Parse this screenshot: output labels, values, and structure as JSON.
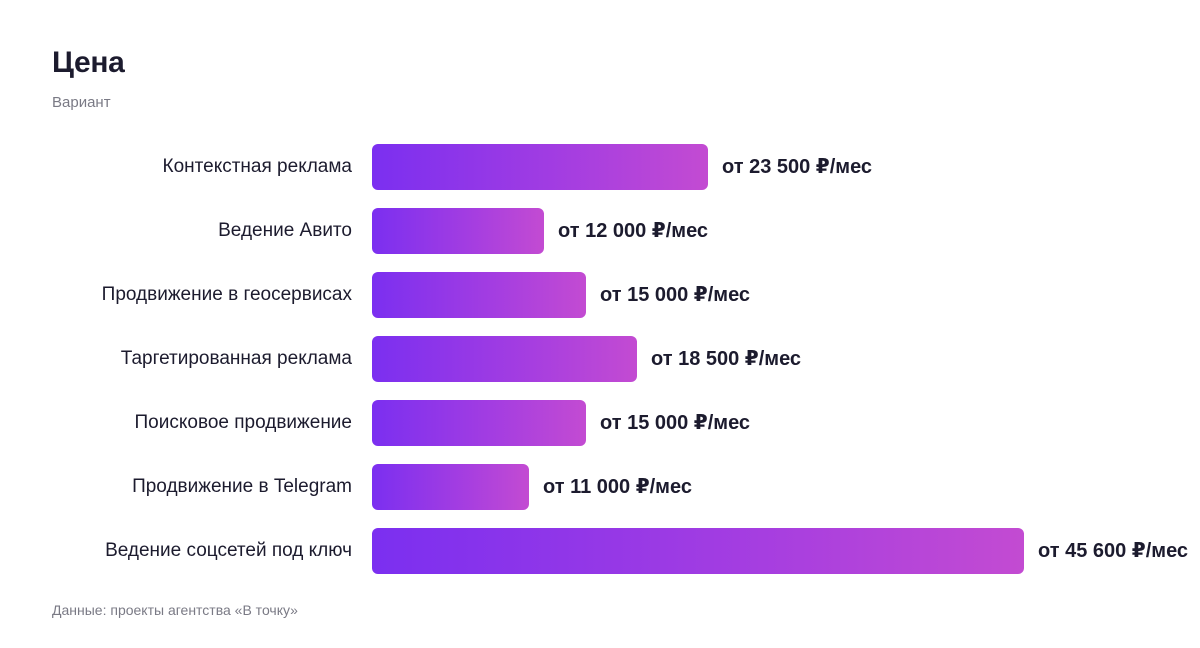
{
  "chart_data": {
    "type": "bar",
    "orientation": "horizontal",
    "title": "Цена",
    "subtitle": "Вариант",
    "categories": [
      "Контекстная реклама",
      "Ведение Авито",
      "Продвижение в геосервисах",
      "Таргетированная реклама",
      "Поисковое продвижение",
      "Продвижение в Telegram",
      "Ведение соцсетей под ключ"
    ],
    "values": [
      23500,
      12000,
      15000,
      18500,
      15000,
      11000,
      45600
    ],
    "value_labels": [
      "от 23 500 ₽/мес",
      "от 12 000 ₽/мес",
      "от 15 000 ₽/мес",
      "от 18 500 ₽/мес",
      "от 15 000 ₽/мес",
      "от 11 000 ₽/мес",
      "от 45 600 ₽/мес"
    ],
    "xlim": [
      0,
      45600
    ],
    "grid": false,
    "bar_gradient": [
      "#7b2ff0",
      "#c34bd2"
    ],
    "source": "Данные: проекты агентства «В точку»"
  }
}
